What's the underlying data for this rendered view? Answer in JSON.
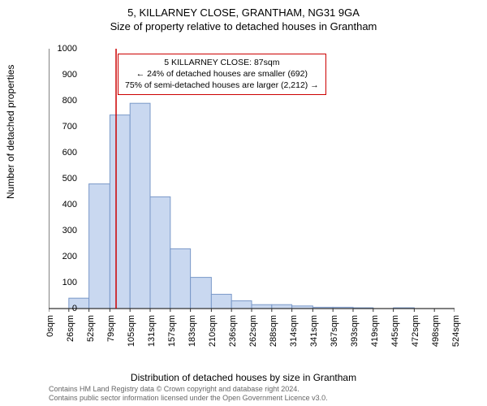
{
  "title": {
    "line1": "5, KILLARNEY CLOSE, GRANTHAM, NG31 9GA",
    "line2": "Size of property relative to detached houses in Grantham"
  },
  "chart": {
    "type": "histogram",
    "ylabel": "Number of detached properties",
    "xlabel": "Distribution of detached houses by size in Grantham",
    "ylim": [
      0,
      1000
    ],
    "ytick_step": 100,
    "yticks": [
      0,
      100,
      200,
      300,
      400,
      500,
      600,
      700,
      800,
      900,
      1000
    ],
    "xticks_labels": [
      "0sqm",
      "26sqm",
      "52sqm",
      "79sqm",
      "105sqm",
      "131sqm",
      "157sqm",
      "183sqm",
      "210sqm",
      "236sqm",
      "262sqm",
      "288sqm",
      "314sqm",
      "341sqm",
      "367sqm",
      "393sqm",
      "419sqm",
      "445sqm",
      "472sqm",
      "498sqm",
      "524sqm"
    ],
    "xticks_values": [
      0,
      26,
      52,
      79,
      105,
      131,
      157,
      183,
      210,
      236,
      262,
      288,
      314,
      341,
      367,
      393,
      419,
      445,
      472,
      498,
      524
    ],
    "xlim": [
      0,
      524
    ],
    "bar_color": "#c9d8f0",
    "bar_border_color": "#7a99c9",
    "marker_line_color": "#cc0000",
    "marker_value": 87,
    "axis_color": "#333333",
    "background_color": "#ffffff",
    "bars": [
      {
        "x0": 26,
        "x1": 52,
        "value": 40
      },
      {
        "x0": 52,
        "x1": 79,
        "value": 480
      },
      {
        "x0": 79,
        "x1": 105,
        "value": 745
      },
      {
        "x0": 105,
        "x1": 131,
        "value": 790
      },
      {
        "x0": 131,
        "x1": 157,
        "value": 430
      },
      {
        "x0": 157,
        "x1": 183,
        "value": 230
      },
      {
        "x0": 183,
        "x1": 210,
        "value": 120
      },
      {
        "x0": 210,
        "x1": 236,
        "value": 55
      },
      {
        "x0": 236,
        "x1": 262,
        "value": 30
      },
      {
        "x0": 262,
        "x1": 288,
        "value": 15
      },
      {
        "x0": 288,
        "x1": 314,
        "value": 15
      },
      {
        "x0": 314,
        "x1": 341,
        "value": 10
      },
      {
        "x0": 341,
        "x1": 367,
        "value": 5
      },
      {
        "x0": 367,
        "x1": 393,
        "value": 5
      },
      {
        "x0": 393,
        "x1": 419,
        "value": 3
      },
      {
        "x0": 445,
        "x1": 472,
        "value": 3
      }
    ]
  },
  "annotation": {
    "line1": "5 KILLARNEY CLOSE: 87sqm",
    "line2": "← 24% of detached houses are smaller (692)",
    "line3": "75% of semi-detached houses are larger (2,212) →"
  },
  "footer": {
    "line1": "Contains HM Land Registry data © Crown copyright and database right 2024.",
    "line2": "Contains public sector information licensed under the Open Government Licence v3.0."
  }
}
